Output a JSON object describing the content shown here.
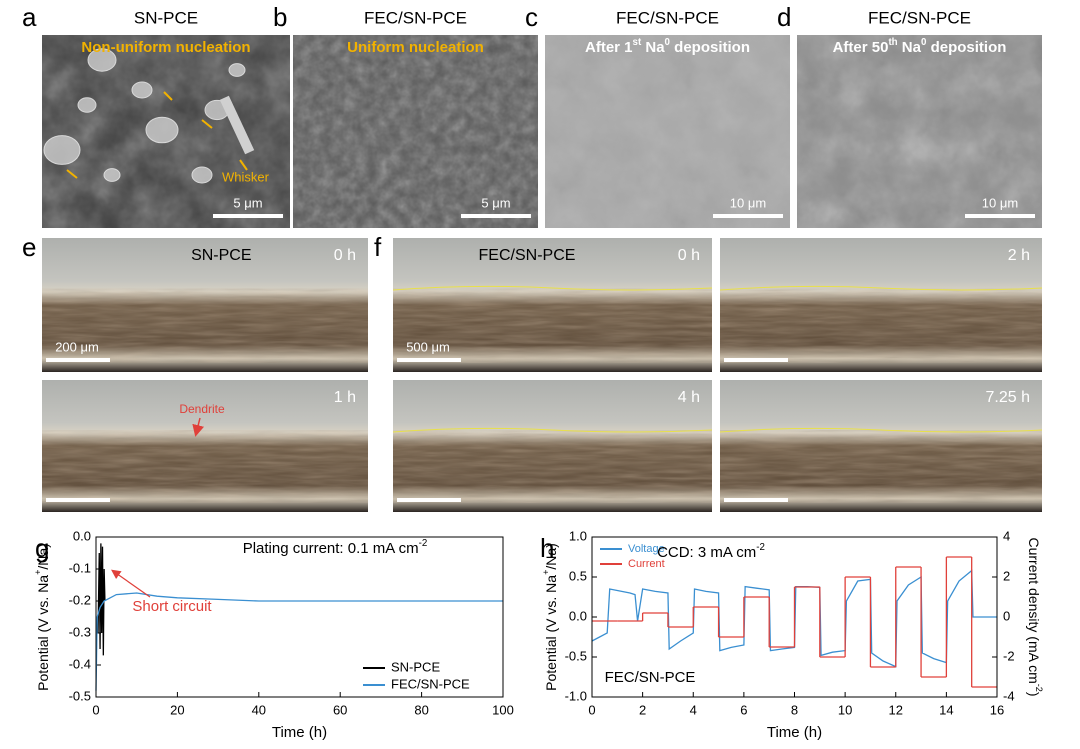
{
  "sem_panels": [
    {
      "letter": "a",
      "title": "SN-PCE",
      "caption": [
        {
          "text": "Non-uniform nucleation"
        }
      ],
      "caption_color": "#f2b200",
      "scale_bar": "5 μm",
      "annotations": [
        "Whisker"
      ]
    },
    {
      "letter": "b",
      "title": "FEC/SN-PCE",
      "caption": [
        {
          "text": "Uniform nucleation"
        }
      ],
      "caption_color": "#f2b200",
      "scale_bar": "5 μm"
    },
    {
      "letter": "c",
      "title": "FEC/SN-PCE",
      "caption": [
        {
          "text": "After 1"
        },
        {
          "text": "st",
          "sup": true
        },
        {
          "text": " Na"
        },
        {
          "text": "0",
          "sup": true
        },
        {
          "text": " deposition"
        }
      ],
      "caption_color": "#ffffff",
      "scale_bar": "10 μm"
    },
    {
      "letter": "d",
      "title": "FEC/SN-PCE",
      "caption": [
        {
          "text": "After 50"
        },
        {
          "text": "th",
          "sup": true
        },
        {
          "text": " Na"
        },
        {
          "text": "0",
          "sup": true
        },
        {
          "text": " deposition"
        }
      ],
      "caption_color": "#ffffff",
      "scale_bar": "10 μm"
    }
  ],
  "optical_panels": [
    {
      "letter": "e",
      "title": "SN-PCE",
      "scale_bar": "200 μm",
      "frames": [
        {
          "time": "0 h"
        },
        {
          "time": "1 h",
          "annotation": "Dendrite"
        }
      ]
    },
    {
      "letter": "f",
      "title": "FEC/SN-PCE",
      "scale_bar": "500 μm",
      "frames": [
        {
          "time": "0 h"
        },
        {
          "time": "2 h"
        },
        {
          "time": "4 h"
        },
        {
          "time": "7.25 h"
        }
      ]
    }
  ],
  "chart_data": [
    {
      "type": "line",
      "letter": "g",
      "annotations": [
        [
          {
            "text": "Plating current: 0.1 mA cm"
          },
          {
            "text": "-2",
            "sup": true
          }
        ],
        [
          {
            "text": "Short circuit"
          }
        ]
      ],
      "xlabel": [
        {
          "text": "Time (h)"
        }
      ],
      "ylabel": [
        {
          "text": "Potential (V vs. Na"
        },
        {
          "text": "+",
          "sup": true
        },
        {
          "text": "/Na)"
        }
      ],
      "xlim": [
        0,
        100
      ],
      "xticks": [
        0,
        20,
        40,
        60,
        80,
        100
      ],
      "ylim": [
        -0.5,
        0
      ],
      "yticks": [
        -0.5,
        -0.4,
        -0.3,
        -0.2,
        -0.1,
        {
          "value": 0,
          "label": "0.0"
        }
      ],
      "legend": "lower right",
      "series": [
        {
          "name": "SN-PCE",
          "color": "#000000",
          "x": [
            0.5,
            0.8,
            1,
            1.2,
            1.4,
            1.6,
            1.8,
            2,
            2.2
          ],
          "values": [
            -0.3,
            -0.05,
            -0.35,
            -0.02,
            -0.3,
            -0.03,
            -0.37,
            -0.1,
            -0.2
          ]
        },
        {
          "name": "FEC/SN-PCE",
          "color": "#3a8fd1",
          "x": [
            0,
            0.3,
            1,
            2,
            5,
            10,
            15,
            20,
            30,
            40,
            50,
            60,
            70,
            80,
            90,
            100
          ],
          "values": [
            -0.48,
            -0.25,
            -0.22,
            -0.2,
            -0.18,
            -0.175,
            -0.185,
            -0.19,
            -0.195,
            -0.2,
            -0.2,
            -0.2,
            -0.2,
            -0.2,
            -0.2,
            -0.2
          ]
        }
      ]
    },
    {
      "type": "line",
      "letter": "h",
      "annotations": [
        [
          {
            "text": "CCD: 3 mA cm"
          },
          {
            "text": "-2",
            "sup": true
          }
        ],
        [
          {
            "text": "FEC/SN-PCE"
          }
        ]
      ],
      "xlabel": [
        {
          "text": "Time (h)"
        }
      ],
      "ylabel": [
        {
          "text": "Potential (V vs. Na"
        },
        {
          "text": "+",
          "sup": true
        },
        {
          "text": "/Na)"
        }
      ],
      "y2label": [
        {
          "text": "Current density (mA cm"
        },
        {
          "text": "-2",
          "sup": true
        },
        {
          "text": ")"
        }
      ],
      "xlim": [
        0,
        16
      ],
      "xticks": [
        0,
        2,
        4,
        6,
        8,
        10,
        12,
        14,
        16
      ],
      "ylim": [
        -1,
        1
      ],
      "yticks": [
        {
          "value": -1,
          "label": "-1.0"
        },
        -0.5,
        {
          "value": 0,
          "label": "0.0"
        },
        0.5,
        {
          "value": 1,
          "label": "1.0"
        }
      ],
      "y2lim": [
        -4,
        4
      ],
      "y2ticks": [
        -4,
        -2,
        0,
        2,
        4
      ],
      "legend": "upper left",
      "series": [
        {
          "name": "Voltage",
          "color": "#3a8fd1",
          "x": [
            0,
            0.3,
            0.6,
            0.7,
            1.5,
            1.7,
            1.8,
            2,
            2.5,
            3,
            3.05,
            3.5,
            4,
            4.05,
            4.5,
            5,
            5.05,
            5.5,
            6,
            6.05,
            6.5,
            7,
            7.05,
            7.5,
            8,
            8.05,
            8.5,
            9,
            9.05,
            9.5,
            10,
            10.05,
            10.5,
            11,
            11.05,
            11.5,
            12,
            12.05,
            12.5,
            13,
            13.05,
            13.5,
            14,
            14.05,
            14.5,
            15,
            15.05,
            16
          ],
          "values": [
            -0.3,
            -0.25,
            -0.2,
            0.35,
            0.3,
            0.28,
            -0.05,
            0.35,
            0.32,
            0.3,
            -0.4,
            -0.3,
            -0.2,
            0.35,
            0.32,
            0.3,
            -0.42,
            -0.38,
            -0.35,
            0.38,
            0.36,
            0.34,
            -0.42,
            -0.4,
            -0.38,
            0.38,
            0.38,
            0.37,
            -0.48,
            -0.44,
            -0.42,
            0.2,
            0.45,
            0.47,
            -0.45,
            -0.55,
            -0.62,
            0.2,
            0.4,
            0.5,
            -0.45,
            -0.52,
            -0.57,
            0.2,
            0.45,
            0.58,
            0,
            0
          ]
        },
        {
          "name": "Current",
          "color": "#e0403a",
          "axis": "y2",
          "step": true,
          "x": [
            0,
            1,
            2,
            3,
            4,
            5,
            6,
            7,
            8,
            9,
            10,
            11,
            12,
            13,
            14,
            15
          ],
          "values": [
            -0.2,
            -0.2,
            0.2,
            -0.5,
            0.5,
            -1,
            1,
            -1.5,
            1.5,
            -2,
            2,
            -2.5,
            2.5,
            -3,
            3,
            -3.5
          ]
        }
      ]
    }
  ]
}
